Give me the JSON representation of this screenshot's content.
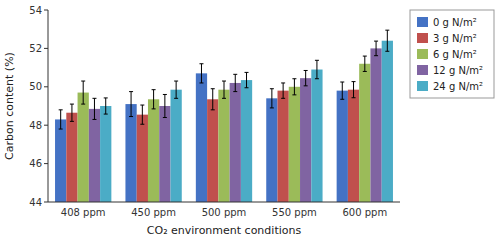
{
  "chart_data": {
    "type": "bar",
    "categories": [
      "408 ppm",
      "450 ppm",
      "500 ppm",
      "550 ppm",
      "600 ppm"
    ],
    "series": [
      {
        "name": "0 g N/m²",
        "color": "#4472C4",
        "values": [
          48.3,
          49.1,
          50.7,
          49.4,
          49.8
        ],
        "errors": [
          0.5,
          0.65,
          0.5,
          0.5,
          0.45
        ]
      },
      {
        "name": "3 g N/m²",
        "color": "#C0504D",
        "values": [
          48.65,
          48.55,
          49.35,
          49.8,
          49.85
        ],
        "errors": [
          0.45,
          0.5,
          0.55,
          0.4,
          0.42
        ]
      },
      {
        "name": "6 g N/m²",
        "color": "#9BBB59",
        "values": [
          49.7,
          49.35,
          49.85,
          50.0,
          51.2
        ],
        "errors": [
          0.6,
          0.5,
          0.45,
          0.42,
          0.4
        ]
      },
      {
        "name": "12 g N/m²",
        "color": "#8064A2",
        "values": [
          48.85,
          49.0,
          50.2,
          50.45,
          52.0
        ],
        "errors": [
          0.55,
          0.6,
          0.45,
          0.4,
          0.38
        ]
      },
      {
        "name": "24 g N/m²",
        "color": "#4BACC6",
        "values": [
          49.0,
          49.85,
          50.35,
          50.9,
          52.4
        ],
        "errors": [
          0.42,
          0.45,
          0.4,
          0.48,
          0.55
        ]
      }
    ],
    "xlabel": "CO₂ environment conditions",
    "ylabel": "Carbon content (%)",
    "ylim": [
      44,
      54
    ],
    "yticks": [
      44,
      46,
      48,
      50,
      52,
      54
    ],
    "grid": false,
    "legend": "right"
  }
}
